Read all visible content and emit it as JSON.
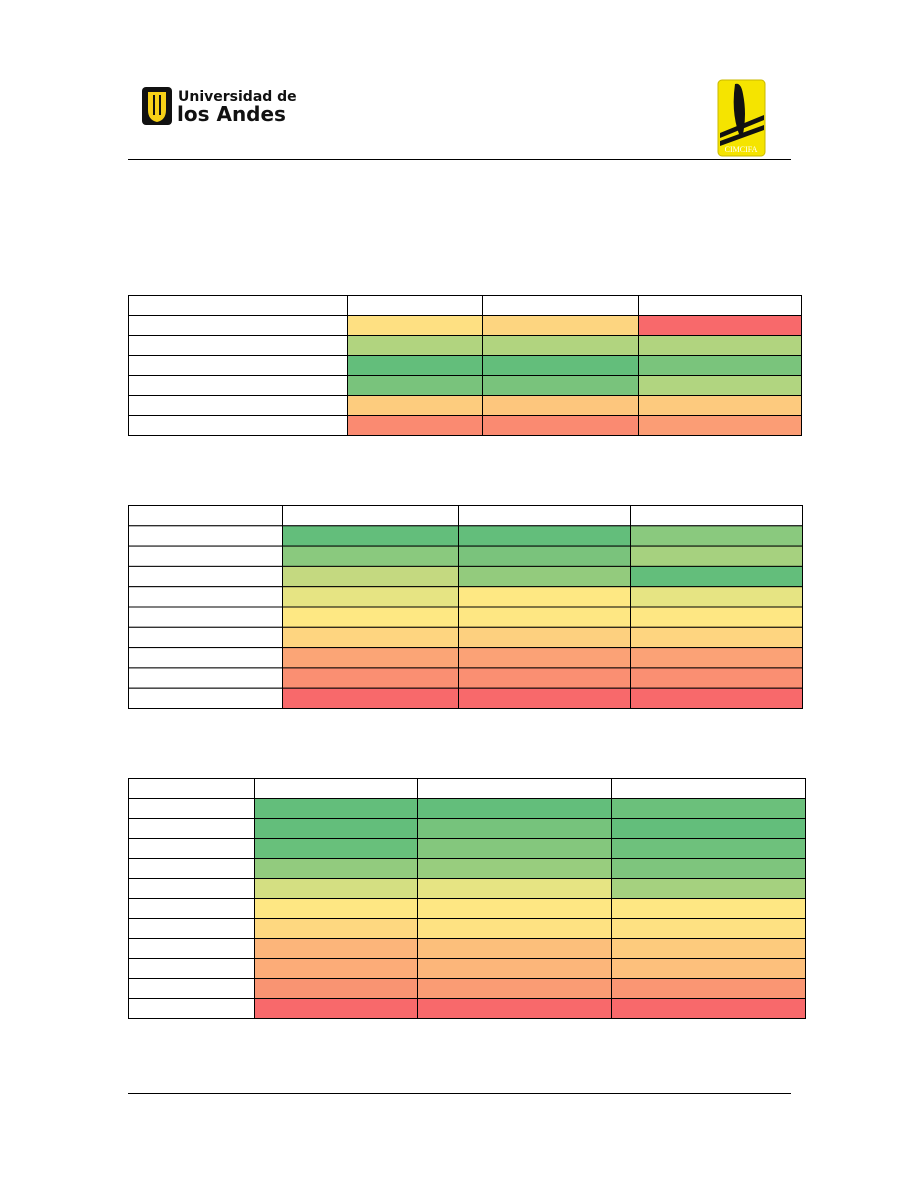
{
  "header": {
    "logo_left": {
      "line1": "Universidad de",
      "line2": "los Andes"
    },
    "logo_right": {
      "text": "CIMCIFA"
    }
  },
  "tables": [
    {
      "cell_colors": [
        [
          "#fee082",
          "#fdd580",
          "#f8696b"
        ],
        [
          "#b1d47f",
          "#b1d47f",
          "#b1d47f"
        ],
        [
          "#63be7b",
          "#63be7b",
          "#7ac47c"
        ],
        [
          "#79c37c",
          "#79c37c",
          "#b1d580"
        ],
        [
          "#fdcc7e",
          "#fdc67d",
          "#fdca7e"
        ],
        [
          "#fa8a71",
          "#fa8a71",
          "#fb9d75"
        ]
      ]
    },
    {
      "cell_colors": [
        [
          "#63be7b",
          "#63be7b",
          "#8ac97e"
        ],
        [
          "#8ac97e",
          "#7ac37c",
          "#a6d17f"
        ],
        [
          "#c4d980",
          "#93cb7d",
          "#63be7b"
        ],
        [
          "#e6e483",
          "#fee883",
          "#e6e483"
        ],
        [
          "#fee883",
          "#fee783",
          "#fee783"
        ],
        [
          "#fed580",
          "#fdd07f",
          "#fed580"
        ],
        [
          "#fba576",
          "#fba276",
          "#fba276"
        ],
        [
          "#fa8f72",
          "#fa8f72",
          "#fa8f72"
        ],
        [
          "#f8696b",
          "#f8696b",
          "#f8696b"
        ]
      ]
    },
    {
      "cell_colors": [
        [
          "#63be7b",
          "#63be7b",
          "#6bc07b"
        ],
        [
          "#63be7b",
          "#76c37c",
          "#63be7b"
        ],
        [
          "#68c07b",
          "#84c77d",
          "#6ec17c"
        ],
        [
          "#92cb7e",
          "#98cd7e",
          "#7ec57d"
        ],
        [
          "#d4df82",
          "#e6e483",
          "#a5d17f"
        ],
        [
          "#fee783",
          "#fee783",
          "#fee783"
        ],
        [
          "#fed880",
          "#fee282",
          "#fee182"
        ],
        [
          "#fcb57a",
          "#fcbf7b",
          "#fdcb7d"
        ],
        [
          "#fcac78",
          "#fcb67a",
          "#fdc07c"
        ],
        [
          "#f99472",
          "#fa9c74",
          "#fa9673"
        ],
        [
          "#f8696b",
          "#f8696b",
          "#f8696b"
        ]
      ]
    }
  ]
}
